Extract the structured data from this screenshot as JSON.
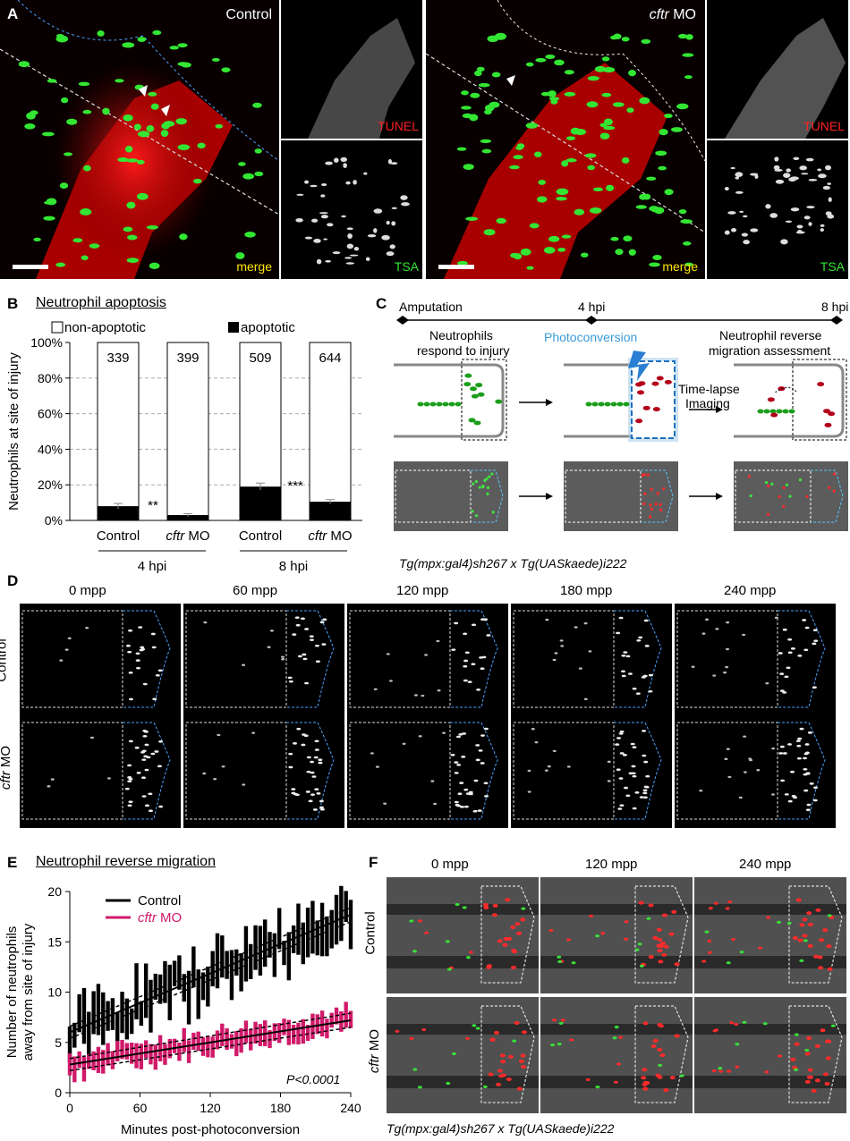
{
  "panelA": {
    "letter": "A",
    "control_title": "Control",
    "cftr_title_italic": "cftr",
    "cftr_title_rest": " MO",
    "tunel": "TUNEL",
    "tsa": "TSA",
    "merge": "merge"
  },
  "panelB": {
    "letter": "B",
    "title": "Neutrophil apoptosis",
    "legend_nonapoptotic": "non-apoptotic",
    "legend_apoptotic": "apoptotic",
    "ylabel": "Neutrophils at site of injury",
    "groups": [
      "4 hpi",
      "8 hpi"
    ],
    "sig_4hpi": "**",
    "sig_8hpi": "***"
  },
  "chart_data": [
    {
      "type": "bar",
      "title": "Neutrophil apoptosis",
      "ylabel": "Neutrophils at site of injury",
      "ylim": [
        0,
        100
      ],
      "yticks": [
        "0%",
        "20%",
        "40%",
        "60%",
        "80%",
        "100%"
      ],
      "categories": [
        "Control",
        "cftr MO",
        "Control",
        "cftr MO"
      ],
      "groups": [
        "4 hpi",
        "4 hpi",
        "8 hpi",
        "8 hpi"
      ],
      "counts": [
        "339",
        "399",
        "509",
        "644"
      ],
      "series": [
        {
          "name": "apoptotic",
          "values": [
            8,
            3,
            19,
            10.5
          ],
          "error": [
            1.5,
            0.8,
            2,
            1.2
          ]
        },
        {
          "name": "non-apoptotic",
          "values": [
            92,
            97,
            81,
            89.5
          ]
        }
      ],
      "annotations": [
        "**",
        "***"
      ]
    },
    {
      "type": "bar",
      "title": "Neutrophil reverse migration",
      "xlabel": "Minutes post-photoconversion",
      "ylabel": "Number of neutrophils away from site of injury",
      "xlim": [
        0,
        240
      ],
      "ylim": [
        0,
        20
      ],
      "xticks": [
        "0",
        "60",
        "120",
        "180",
        "240"
      ],
      "yticks": [
        "0",
        "5",
        "10",
        "15",
        "20"
      ],
      "series": [
        {
          "name": "Control",
          "color": "#000000",
          "fit_start": 6.0,
          "fit_end": 17.7
        },
        {
          "name": "cftr MO",
          "color": "#d01a6a",
          "fit_start": 2.8,
          "fit_end": 7.2
        }
      ],
      "annotation": "P<0.0001"
    }
  ],
  "panelC": {
    "letter": "C",
    "amputation": "Amputation",
    "t4": "4 hpi",
    "t8": "8 hpi",
    "step1_line1": "Neutrophils",
    "step1_line2": "respond to injury",
    "photoconversion": "Photoconversion",
    "step3_line1": "Neutrophil reverse",
    "step3_line2": "migration assessment",
    "timelapse_line1": "Time-lapse",
    "timelapse_line2": "Imaging",
    "genotype": "Tg(mpx:gal4)sh267 x Tg(UASkaede)i222"
  },
  "panelD": {
    "letter": "D",
    "timepoints": [
      "0 mpp",
      "60 mpp",
      "120 mpp",
      "180 mpp",
      "240 mpp"
    ],
    "row_control": "Control",
    "row_cftr_italic": "cftr",
    "row_cftr_rest": " MO"
  },
  "panelE": {
    "letter": "E",
    "title": "Neutrophil reverse migration",
    "legend_control": "Control",
    "legend_cftr_italic": "cftr",
    "legend_cftr_rest": " MO",
    "ylabel_line1": "Number of neutrophils",
    "ylabel_line2": "away from site of injury",
    "xlabel": "Minutes post-photoconversion",
    "pvalue": "P<0.0001",
    "colors": {
      "control": "#000000",
      "cftr": "#d01a6a"
    }
  },
  "panelF": {
    "letter": "F",
    "timepoints": [
      "0 mpp",
      "120 mpp",
      "240 mpp"
    ],
    "row_control": "Control",
    "row_cftr_italic": "cftr",
    "row_cftr_rest": " MO",
    "genotype": "Tg(mpx:gal4)sh267 x Tg(UASkaede)i222"
  }
}
